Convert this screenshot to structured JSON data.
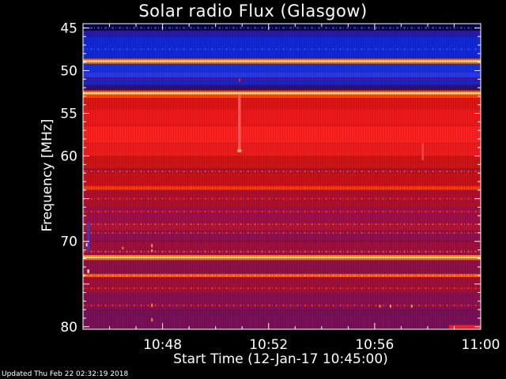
{
  "chart_data": {
    "type": "heatmap",
    "title": "Solar radio Flux (Glasgow)",
    "xlabel": "Start Time (12-Jan-17 10:45:00)",
    "ylabel": "Frequency [MHz]",
    "x_ticks": [
      "10:48",
      "10:52",
      "10:56",
      "11:00"
    ],
    "x_tick_minutes": [
      48,
      52,
      56,
      60
    ],
    "xlim_minutes": [
      45,
      60
    ],
    "y_ticks": [
      45,
      50,
      55,
      60,
      70,
      80
    ],
    "ylim": [
      44.5,
      80.3
    ],
    "bands": [
      {
        "f0": 44.5,
        "f1": 45.3,
        "color": "#000040"
      },
      {
        "f0": 45.3,
        "f1": 46.0,
        "color": "#2a1aa8"
      },
      {
        "f0": 46.0,
        "f1": 48.6,
        "color": "#1028d8"
      },
      {
        "f0": 48.6,
        "f1": 48.8,
        "color": "#ff6a00"
      },
      {
        "f0": 48.8,
        "f1": 49.0,
        "color": "#fff0b0"
      },
      {
        "f0": 49.0,
        "f1": 49.2,
        "color": "#ff7a10"
      },
      {
        "f0": 49.2,
        "f1": 50.2,
        "color": "#1a30e0"
      },
      {
        "f0": 50.2,
        "f1": 50.8,
        "color": "#2a3ae8"
      },
      {
        "f0": 50.8,
        "f1": 51.2,
        "color": "#3a1ab0"
      },
      {
        "f0": 51.2,
        "f1": 51.7,
        "color": "#1828c8"
      },
      {
        "f0": 51.7,
        "f1": 52.3,
        "color": "#301070"
      },
      {
        "f0": 52.3,
        "f1": 52.5,
        "color": "#ff3300"
      },
      {
        "f0": 52.5,
        "f1": 52.8,
        "color": "#ffe080"
      },
      {
        "f0": 52.8,
        "f1": 53.2,
        "color": "#ff4400"
      },
      {
        "f0": 53.2,
        "f1": 54.5,
        "color": "#e01414"
      },
      {
        "f0": 54.5,
        "f1": 56.5,
        "color": "#f01818"
      },
      {
        "f0": 56.5,
        "f1": 58.5,
        "color": "#ff2020"
      },
      {
        "f0": 58.5,
        "f1": 60.0,
        "color": "#f01c1c"
      },
      {
        "f0": 60.0,
        "f1": 61.5,
        "color": "#d01414"
      },
      {
        "f0": 61.5,
        "f1": 61.9,
        "color": "#a01040"
      },
      {
        "f0": 61.9,
        "f1": 63.5,
        "color": "#c81218"
      },
      {
        "f0": 63.5,
        "f1": 64.0,
        "color": "#ff3010"
      },
      {
        "f0": 64.0,
        "f1": 66.0,
        "color": "#b01030"
      },
      {
        "f0": 66.0,
        "f1": 68.0,
        "color": "#a01048"
      },
      {
        "f0": 68.0,
        "f1": 68.8,
        "color": "#b01438"
      },
      {
        "f0": 68.8,
        "f1": 70.0,
        "color": "#901050"
      },
      {
        "f0": 70.0,
        "f1": 71.6,
        "color": "#a0103c"
      },
      {
        "f0": 71.6,
        "f1": 71.8,
        "color": "#ff8020"
      },
      {
        "f0": 71.8,
        "f1": 72.0,
        "color": "#ffe0a0"
      },
      {
        "f0": 72.0,
        "f1": 72.2,
        "color": "#ff7020"
      },
      {
        "f0": 72.2,
        "f1": 73.8,
        "color": "#901048"
      },
      {
        "f0": 73.8,
        "f1": 74.2,
        "color": "#ff5020"
      },
      {
        "f0": 74.2,
        "f1": 76.0,
        "color": "#a01038"
      },
      {
        "f0": 76.0,
        "f1": 78.0,
        "color": "#881050"
      },
      {
        "f0": 78.0,
        "f1": 80.3,
        "color": "#7a1058"
      }
    ],
    "stripes": [
      {
        "f": 45.0,
        "color": "#6a40ff"
      },
      {
        "f": 47.5,
        "color": "#3050ff"
      },
      {
        "f": 61.8,
        "color": "#ff4020"
      },
      {
        "f": 63.8,
        "color": "#ff5010"
      },
      {
        "f": 65.0,
        "color": "#ff3010"
      },
      {
        "f": 66.5,
        "color": "#ff3010"
      },
      {
        "f": 68.0,
        "color": "#ff4020"
      },
      {
        "f": 69.0,
        "color": "#ff3010"
      },
      {
        "f": 71.2,
        "color": "#ff5020"
      },
      {
        "f": 74.0,
        "color": "#ff9030"
      },
      {
        "f": 75.5,
        "color": "#ff3010"
      },
      {
        "f": 77.5,
        "color": "#ff3010"
      }
    ],
    "features": [
      {
        "t": 50.9,
        "f": 51.1,
        "dt": 0.05,
        "df": 0.4,
        "color": "#ff2020"
      },
      {
        "t": 50.9,
        "f": 59.4,
        "dt": 0.15,
        "df": 0.3,
        "color": "#ffd070"
      },
      {
        "t": 50.9,
        "f": 56.0,
        "dt": 0.1,
        "df": 6.5,
        "color": "#ff6060"
      },
      {
        "t": 45.15,
        "f": 70.4,
        "dt": 0.08,
        "df": 0.4,
        "color": "#ffffff"
      },
      {
        "t": 47.6,
        "f": 70.5,
        "dt": 0.06,
        "df": 0.4,
        "color": "#ff9040"
      },
      {
        "t": 47.6,
        "f": 71.1,
        "dt": 0.06,
        "df": 0.3,
        "color": "#ffb060"
      },
      {
        "t": 47.6,
        "f": 77.5,
        "dt": 0.06,
        "df": 0.4,
        "color": "#ff9040"
      },
      {
        "t": 47.6,
        "f": 79.2,
        "dt": 0.06,
        "df": 0.4,
        "color": "#ff9040"
      },
      {
        "t": 46.5,
        "f": 70.8,
        "dt": 0.06,
        "df": 0.3,
        "color": "#ff8040"
      },
      {
        "t": 56.2,
        "f": 77.6,
        "dt": 0.06,
        "df": 0.3,
        "color": "#ff9040"
      },
      {
        "t": 56.6,
        "f": 77.6,
        "dt": 0.06,
        "df": 0.3,
        "color": "#ffb060"
      },
      {
        "t": 57.4,
        "f": 77.6,
        "dt": 0.06,
        "df": 0.3,
        "color": "#ffb060"
      },
      {
        "t": 57.8,
        "f": 59.5,
        "dt": 0.03,
        "df": 2.0,
        "color": "#ff5050"
      },
      {
        "t": 59.4,
        "f": 80.0,
        "dt": 1.2,
        "df": 0.4,
        "color": "#ff2020"
      },
      {
        "t": 45.2,
        "f": 69.5,
        "dt": 0.08,
        "df": 3.5,
        "color": "#3040d0"
      },
      {
        "t": 45.2,
        "f": 73.5,
        "dt": 0.08,
        "df": 0.4,
        "color": "#ffff60"
      }
    ]
  },
  "footer_text": "Updated Thu Feb 22 02:32:19 2018"
}
